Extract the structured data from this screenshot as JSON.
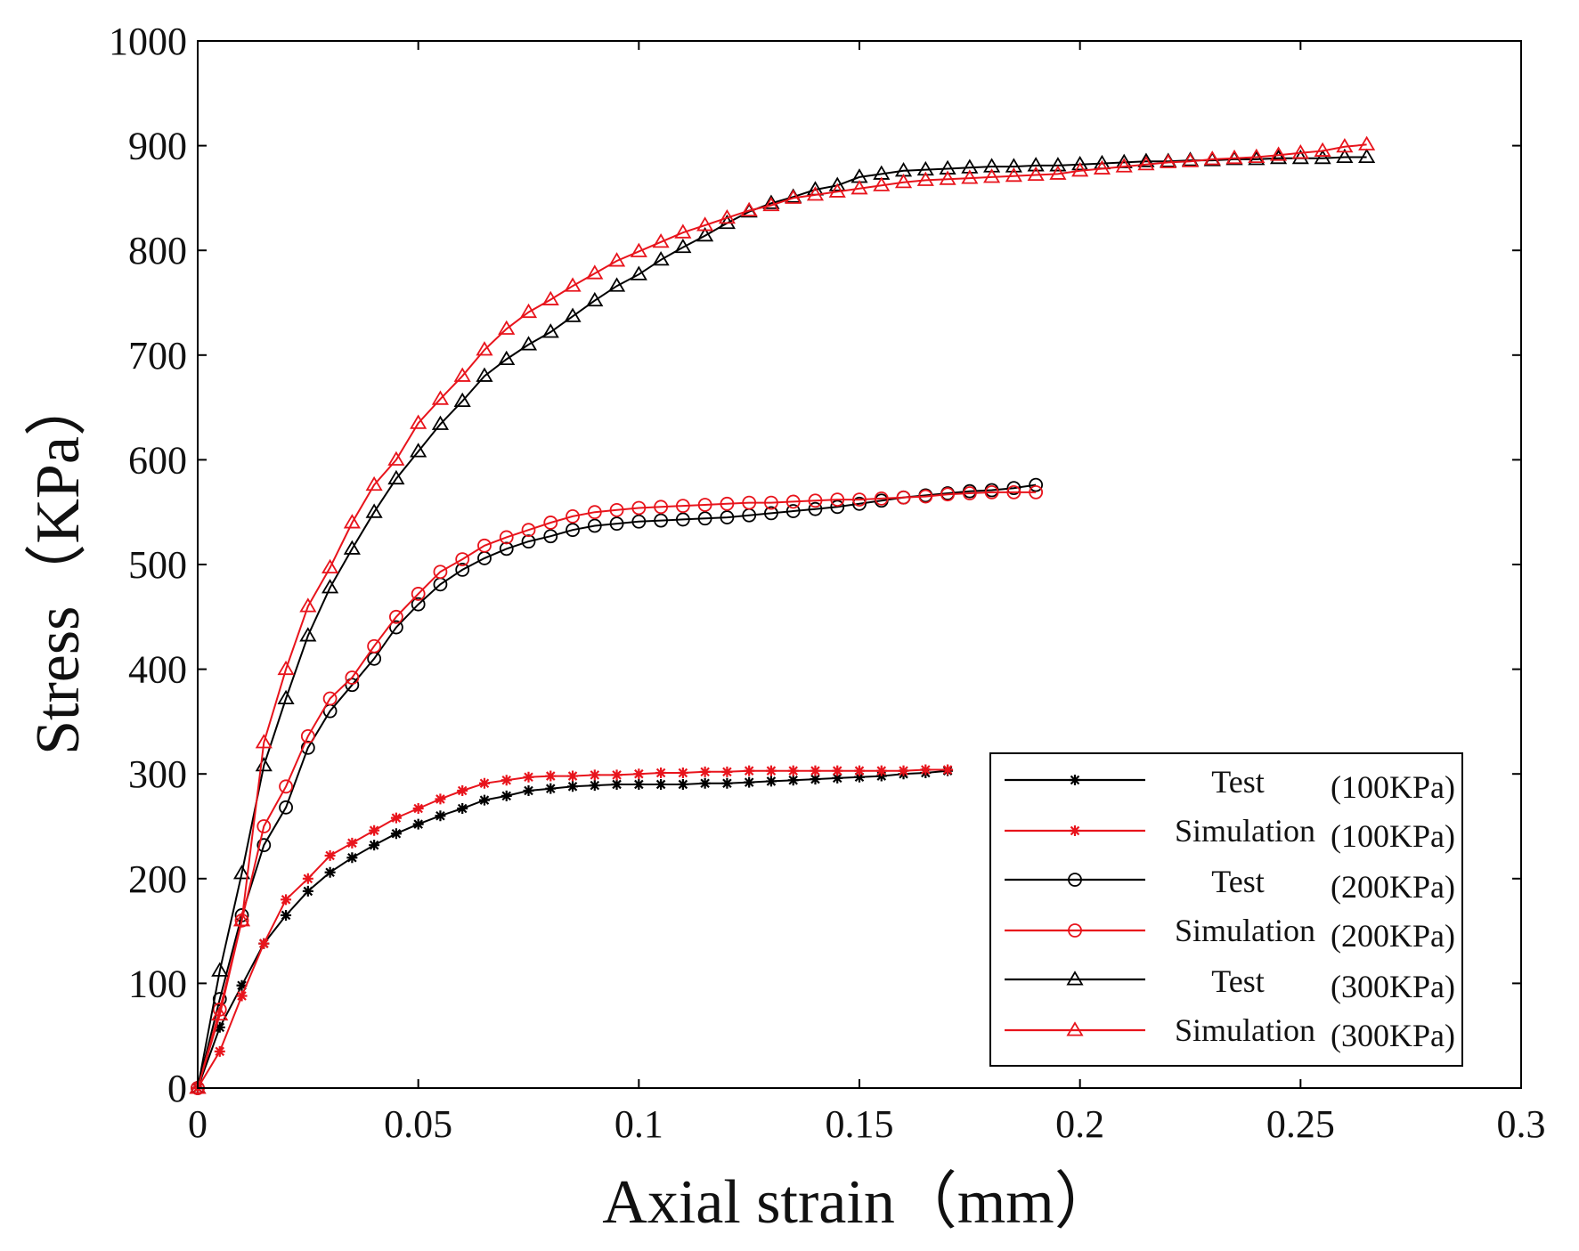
{
  "chart_data": {
    "type": "line",
    "xlabel": "Axial strain（mm）",
    "ylabel": "Stress（KPa）",
    "xlim": [
      0,
      0.3
    ],
    "ylim": [
      0,
      1000
    ],
    "xticks": [
      0,
      0.05,
      0.1,
      0.15,
      0.2,
      0.25,
      0.3
    ],
    "xtick_labels": [
      "0",
      "0.05",
      "0.1",
      "0.15",
      "0.2",
      "0.25",
      "0.3"
    ],
    "yticks": [
      0,
      100,
      200,
      300,
      400,
      500,
      600,
      700,
      800,
      900,
      1000
    ],
    "ytick_labels": [
      "0",
      "100",
      "200",
      "300",
      "400",
      "500",
      "600",
      "700",
      "800",
      "900",
      "1000"
    ],
    "legend_position": "bottom-right",
    "series": [
      {
        "name": "Test",
        "pressure": "(100KPa)",
        "color": "#000000",
        "marker": "star",
        "x": [
          0,
          0.005,
          0.01,
          0.015,
          0.02,
          0.025,
          0.03,
          0.035,
          0.04,
          0.045,
          0.05,
          0.055,
          0.06,
          0.065,
          0.07,
          0.075,
          0.08,
          0.085,
          0.09,
          0.095,
          0.1,
          0.105,
          0.11,
          0.115,
          0.12,
          0.125,
          0.13,
          0.135,
          0.14,
          0.145,
          0.15,
          0.155,
          0.16,
          0.165,
          0.17
        ],
        "y": [
          0,
          58,
          98,
          138,
          165,
          188,
          206,
          220,
          232,
          243,
          252,
          260,
          267,
          275,
          279,
          284,
          286,
          288,
          289,
          290,
          290,
          290,
          290,
          291,
          291,
          292,
          293,
          294,
          295,
          296,
          297,
          298,
          300,
          301,
          303
        ]
      },
      {
        "name": "Simulation",
        "pressure": "(100KPa)",
        "color": "#e8141c",
        "marker": "star",
        "x": [
          0,
          0.005,
          0.01,
          0.015,
          0.02,
          0.025,
          0.03,
          0.035,
          0.04,
          0.045,
          0.05,
          0.055,
          0.06,
          0.065,
          0.07,
          0.075,
          0.08,
          0.085,
          0.09,
          0.095,
          0.1,
          0.105,
          0.11,
          0.115,
          0.12,
          0.125,
          0.13,
          0.135,
          0.14,
          0.145,
          0.15,
          0.155,
          0.16,
          0.165,
          0.17
        ],
        "y": [
          0,
          35,
          88,
          138,
          180,
          200,
          222,
          234,
          246,
          258,
          267,
          276,
          284,
          291,
          294,
          297,
          298,
          298,
          299,
          299,
          300,
          301,
          301,
          302,
          302,
          303,
          303,
          303,
          303,
          303,
          303,
          303,
          303,
          304,
          304
        ]
      },
      {
        "name": "Test",
        "pressure": "(200KPa)",
        "color": "#000000",
        "marker": "circle",
        "x": [
          0,
          0.005,
          0.01,
          0.015,
          0.02,
          0.025,
          0.03,
          0.035,
          0.04,
          0.045,
          0.05,
          0.055,
          0.06,
          0.065,
          0.07,
          0.075,
          0.08,
          0.085,
          0.09,
          0.095,
          0.1,
          0.105,
          0.11,
          0.115,
          0.12,
          0.125,
          0.13,
          0.135,
          0.14,
          0.145,
          0.15,
          0.155,
          0.16,
          0.165,
          0.17,
          0.175,
          0.18,
          0.185,
          0.19
        ],
        "y": [
          0,
          85,
          165,
          232,
          268,
          325,
          360,
          385,
          410,
          440,
          462,
          481,
          495,
          506,
          515,
          522,
          527,
          533,
          537,
          539,
          541,
          542,
          543,
          544,
          545,
          547,
          549,
          551,
          553,
          555,
          558,
          561,
          564,
          566,
          568,
          570,
          571,
          573,
          576
        ]
      },
      {
        "name": "Simulation",
        "pressure": "(200KPa)",
        "color": "#e8141c",
        "marker": "circle",
        "x": [
          0,
          0.005,
          0.01,
          0.015,
          0.02,
          0.025,
          0.03,
          0.035,
          0.04,
          0.045,
          0.05,
          0.055,
          0.06,
          0.065,
          0.07,
          0.075,
          0.08,
          0.085,
          0.09,
          0.095,
          0.1,
          0.105,
          0.11,
          0.115,
          0.12,
          0.125,
          0.13,
          0.135,
          0.14,
          0.145,
          0.15,
          0.155,
          0.16,
          0.165,
          0.17,
          0.175,
          0.18,
          0.185,
          0.19
        ],
        "y": [
          0,
          75,
          160,
          250,
          288,
          336,
          372,
          392,
          422,
          450,
          472,
          493,
          505,
          518,
          526,
          533,
          540,
          546,
          550,
          552,
          554,
          555,
          556,
          557,
          558,
          559,
          559,
          560,
          561,
          562,
          562,
          563,
          564,
          565,
          567,
          568,
          569,
          569,
          569
        ]
      },
      {
        "name": "Test",
        "pressure": "(300KPa)",
        "color": "#000000",
        "marker": "triangle",
        "x": [
          0,
          0.005,
          0.01,
          0.015,
          0.02,
          0.025,
          0.03,
          0.035,
          0.04,
          0.045,
          0.05,
          0.055,
          0.06,
          0.065,
          0.07,
          0.075,
          0.08,
          0.085,
          0.09,
          0.095,
          0.1,
          0.105,
          0.11,
          0.115,
          0.12,
          0.125,
          0.13,
          0.135,
          0.14,
          0.145,
          0.15,
          0.155,
          0.16,
          0.165,
          0.17,
          0.175,
          0.18,
          0.185,
          0.19,
          0.195,
          0.2,
          0.205,
          0.21,
          0.215,
          0.22,
          0.225,
          0.23,
          0.235,
          0.24,
          0.245,
          0.25,
          0.255,
          0.26,
          0.265
        ],
        "y": [
          0,
          112,
          205,
          308,
          372,
          432,
          478,
          515,
          550,
          582,
          608,
          634,
          656,
          680,
          696,
          710,
          722,
          737,
          752,
          766,
          777,
          791,
          803,
          814,
          826,
          837,
          845,
          851,
          858,
          862,
          870,
          873,
          876,
          877,
          878,
          879,
          880,
          880,
          881,
          881,
          882,
          883,
          884,
          885,
          885,
          886,
          886,
          887,
          887,
          888,
          888,
          888,
          889,
          889
        ]
      },
      {
        "name": "Simulation",
        "pressure": "(300KPa)",
        "color": "#e8141c",
        "marker": "triangle",
        "x": [
          0,
          0.005,
          0.01,
          0.015,
          0.02,
          0.025,
          0.03,
          0.035,
          0.04,
          0.045,
          0.05,
          0.055,
          0.06,
          0.065,
          0.07,
          0.075,
          0.08,
          0.085,
          0.09,
          0.095,
          0.1,
          0.105,
          0.11,
          0.115,
          0.12,
          0.125,
          0.13,
          0.135,
          0.14,
          0.145,
          0.15,
          0.155,
          0.16,
          0.165,
          0.17,
          0.175,
          0.18,
          0.185,
          0.19,
          0.195,
          0.2,
          0.205,
          0.21,
          0.215,
          0.22,
          0.225,
          0.23,
          0.235,
          0.24,
          0.245,
          0.25,
          0.255,
          0.26,
          0.265
        ],
        "y": [
          0,
          70,
          160,
          330,
          400,
          460,
          497,
          540,
          576,
          600,
          635,
          658,
          680,
          705,
          725,
          741,
          753,
          766,
          778,
          790,
          799,
          808,
          817,
          824,
          831,
          838,
          843,
          850,
          853,
          856,
          859,
          862,
          865,
          867,
          868,
          869,
          870,
          871,
          872,
          873,
          876,
          878,
          880,
          882,
          884,
          885,
          887,
          888,
          889,
          891,
          893,
          895,
          899,
          901
        ]
      }
    ]
  }
}
